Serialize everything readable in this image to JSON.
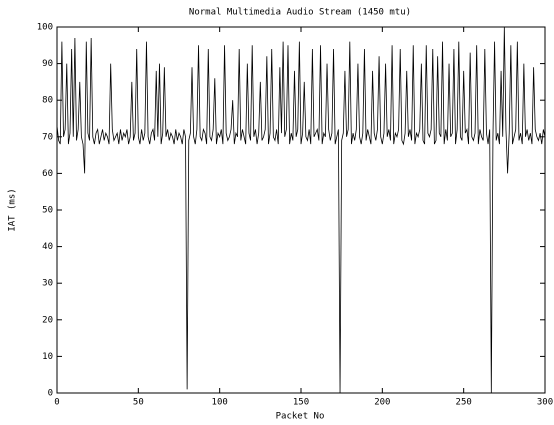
{
  "chart_data": {
    "type": "line",
    "title": "Normal Multimedia Audio Stream (1450 mtu)",
    "x_label": "Packet No",
    "y_label": "IAT (ms)",
    "color": "#000000",
    "x": [
      0,
      1,
      2,
      3,
      4,
      5,
      6,
      7,
      8,
      9,
      10,
      11,
      12,
      13,
      14,
      15,
      16,
      17,
      18,
      19,
      20,
      21,
      22,
      23,
      24,
      25,
      26,
      27,
      28,
      29,
      30,
      31,
      32,
      33,
      34,
      35,
      36,
      37,
      38,
      39,
      40,
      41,
      42,
      43,
      44,
      45,
      46,
      47,
      48,
      49,
      50,
      51,
      52,
      53,
      54,
      55,
      56,
      57,
      58,
      59,
      60,
      61,
      62,
      63,
      64,
      65,
      66,
      67,
      68,
      69,
      70,
      71,
      72,
      73,
      74,
      75,
      76,
      77,
      78,
      79,
      80,
      81,
      82,
      83,
      84,
      85,
      86,
      87,
      88,
      89,
      90,
      91,
      92,
      93,
      94,
      95,
      96,
      97,
      98,
      99,
      100,
      101,
      102,
      103,
      104,
      105,
      106,
      107,
      108,
      109,
      110,
      111,
      112,
      113,
      114,
      115,
      116,
      117,
      118,
      119,
      120,
      121,
      122,
      123,
      124,
      125,
      126,
      127,
      128,
      129,
      130,
      131,
      132,
      133,
      134,
      135,
      136,
      137,
      138,
      139,
      140,
      141,
      142,
      143,
      144,
      145,
      146,
      147,
      148,
      149,
      150,
      151,
      152,
      153,
      154,
      155,
      156,
      157,
      158,
      159,
      160,
      161,
      162,
      163,
      164,
      165,
      166,
      167,
      168,
      169,
      170,
      171,
      172,
      173,
      174,
      175,
      176,
      177,
      178,
      179,
      180,
      181,
      182,
      183,
      184,
      185,
      186,
      187,
      188,
      189,
      190,
      191,
      192,
      193,
      194,
      195,
      196,
      197,
      198,
      199,
      200,
      201,
      202,
      203,
      204,
      205,
      206,
      207,
      208,
      209,
      210,
      211,
      212,
      213,
      214,
      215,
      216,
      217,
      218,
      219,
      220,
      221,
      222,
      223,
      224,
      225,
      226,
      227,
      228,
      229,
      230,
      231,
      232,
      233,
      234,
      235,
      236,
      237,
      238,
      239,
      240,
      241,
      242,
      243,
      244,
      245,
      246,
      247,
      248,
      249,
      250,
      251,
      252,
      253,
      254,
      255,
      256,
      257,
      258,
      259,
      260,
      261,
      262,
      263,
      264,
      265,
      266,
      267,
      268,
      269,
      270,
      271,
      272,
      273,
      274,
      275,
      276,
      277,
      278,
      279,
      280,
      281,
      282,
      283,
      284,
      285,
      286,
      287,
      288,
      289,
      290,
      291,
      292,
      293,
      294,
      295,
      296,
      297,
      298,
      299,
      300
    ],
    "values": [
      73,
      69,
      68,
      96,
      70,
      72,
      90,
      68,
      71,
      94,
      70,
      97,
      69,
      72,
      85,
      70,
      68,
      60,
      96,
      71,
      69,
      97,
      70,
      68,
      71,
      72,
      68,
      70,
      72,
      69,
      71,
      70,
      68,
      90,
      72,
      69,
      70,
      71,
      68,
      72,
      69,
      71,
      70,
      72,
      68,
      70,
      85,
      69,
      71,
      94,
      70,
      68,
      72,
      69,
      71,
      96,
      70,
      68,
      71,
      72,
      69,
      88,
      70,
      90,
      68,
      71,
      89,
      70,
      72,
      69,
      71,
      70,
      68,
      72,
      69,
      71,
      70,
      68,
      72,
      70,
      1,
      69,
      71,
      89,
      70,
      68,
      72,
      95,
      70,
      69,
      72,
      71,
      68,
      94,
      70,
      69,
      72,
      86,
      68,
      71,
      70,
      72,
      68,
      95,
      71,
      69,
      70,
      72,
      80,
      68,
      71,
      70,
      94,
      69,
      72,
      70,
      68,
      90,
      71,
      69,
      95,
      70,
      72,
      68,
      71,
      85,
      69,
      70,
      72,
      92,
      68,
      71,
      94,
      70,
      69,
      72,
      68,
      89,
      71,
      96,
      70,
      72,
      95,
      68,
      71,
      69,
      88,
      70,
      72,
      96,
      68,
      71,
      85,
      70,
      69,
      72,
      68,
      94,
      70,
      71,
      72,
      69,
      95,
      68,
      71,
      70,
      90,
      72,
      69,
      71,
      94,
      68,
      70,
      72,
      0,
      69,
      71,
      88,
      70,
      72,
      96,
      68,
      71,
      69,
      72,
      90,
      70,
      68,
      71,
      94,
      69,
      72,
      70,
      68,
      88,
      71,
      69,
      72,
      92,
      70,
      68,
      71,
      90,
      70,
      72,
      69,
      95,
      68,
      71,
      70,
      72,
      94,
      69,
      68,
      71,
      88,
      70,
      72,
      69,
      95,
      68,
      71,
      70,
      72,
      90,
      69,
      68,
      95,
      71,
      70,
      72,
      94,
      68,
      69,
      92,
      71,
      70,
      96,
      68,
      72,
      69,
      90,
      70,
      71,
      94,
      68,
      72,
      96,
      70,
      69,
      88,
      71,
      72,
      68,
      93,
      70,
      69,
      71,
      95,
      68,
      72,
      70,
      69,
      94,
      71,
      68,
      72,
      0,
      70,
      96,
      69,
      71,
      68,
      88,
      70,
      100,
      72,
      60,
      71,
      95,
      68,
      70,
      72,
      96,
      69,
      71,
      68,
      90,
      70,
      72,
      69,
      71,
      68,
      89,
      72,
      70,
      69,
      71,
      68,
      72,
      70
    ],
    "xlim": [
      0,
      300
    ],
    "xticks": [
      0,
      50,
      100,
      150,
      200,
      250,
      300
    ],
    "ylim": [
      0,
      100
    ],
    "yticks": [
      0,
      10,
      20,
      30,
      40,
      50,
      60,
      70,
      80,
      90,
      100
    ]
  }
}
